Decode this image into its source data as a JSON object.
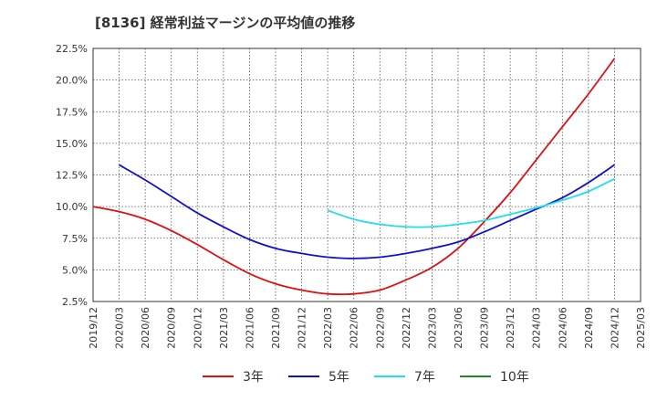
{
  "title": "[8136]  経常利益マージンの平均値の推移",
  "chart_data": {
    "type": "line",
    "title": "[8136]  経常利益マージンの平均値の推移",
    "x": [
      "2019/12",
      "2020/03",
      "2020/06",
      "2020/09",
      "2020/12",
      "2021/03",
      "2021/06",
      "2021/09",
      "2021/12",
      "2022/03",
      "2022/06",
      "2022/09",
      "2022/12",
      "2023/03",
      "2023/06",
      "2023/09",
      "2023/12",
      "2024/03",
      "2024/06",
      "2024/09",
      "2024/12",
      "2025/03"
    ],
    "ylim": [
      2.5,
      22.5
    ],
    "yticks": [
      2.5,
      5.0,
      7.5,
      10.0,
      12.5,
      15.0,
      17.5,
      20.0,
      22.5
    ],
    "ytick_labels": [
      "2.5%",
      "5.0%",
      "7.5%",
      "10.0%",
      "12.5%",
      "15.0%",
      "17.5%",
      "20.0%",
      "22.5%"
    ],
    "grid": true,
    "legend_position": "bottom",
    "series": [
      {
        "name": "3年",
        "color": "#dd1111",
        "values": [
          10.0,
          9.6,
          9.0,
          8.1,
          7.0,
          5.8,
          4.7,
          3.9,
          3.4,
          3.1,
          3.1,
          3.4,
          4.2,
          5.2,
          6.7,
          8.8,
          11.1,
          13.7,
          16.3,
          18.9,
          21.7,
          null
        ]
      },
      {
        "name": "5年",
        "color": "#1111cc",
        "values": [
          null,
          13.3,
          12.1,
          10.8,
          9.5,
          8.4,
          7.4,
          6.7,
          6.3,
          6.0,
          5.9,
          6.0,
          6.3,
          6.7,
          7.2,
          8.0,
          8.9,
          9.8,
          10.7,
          11.9,
          13.3,
          null
        ]
      },
      {
        "name": "7年",
        "color": "#22ddee",
        "values": [
          null,
          null,
          null,
          null,
          null,
          null,
          null,
          null,
          null,
          9.7,
          9.0,
          8.6,
          8.4,
          8.4,
          8.6,
          8.9,
          9.4,
          9.9,
          10.5,
          11.2,
          12.2,
          null
        ]
      },
      {
        "name": "10年",
        "color": "#228822",
        "values": [
          null,
          null,
          null,
          null,
          null,
          null,
          null,
          null,
          null,
          null,
          null,
          null,
          null,
          null,
          null,
          null,
          null,
          null,
          null,
          null,
          null,
          null
        ]
      }
    ]
  }
}
